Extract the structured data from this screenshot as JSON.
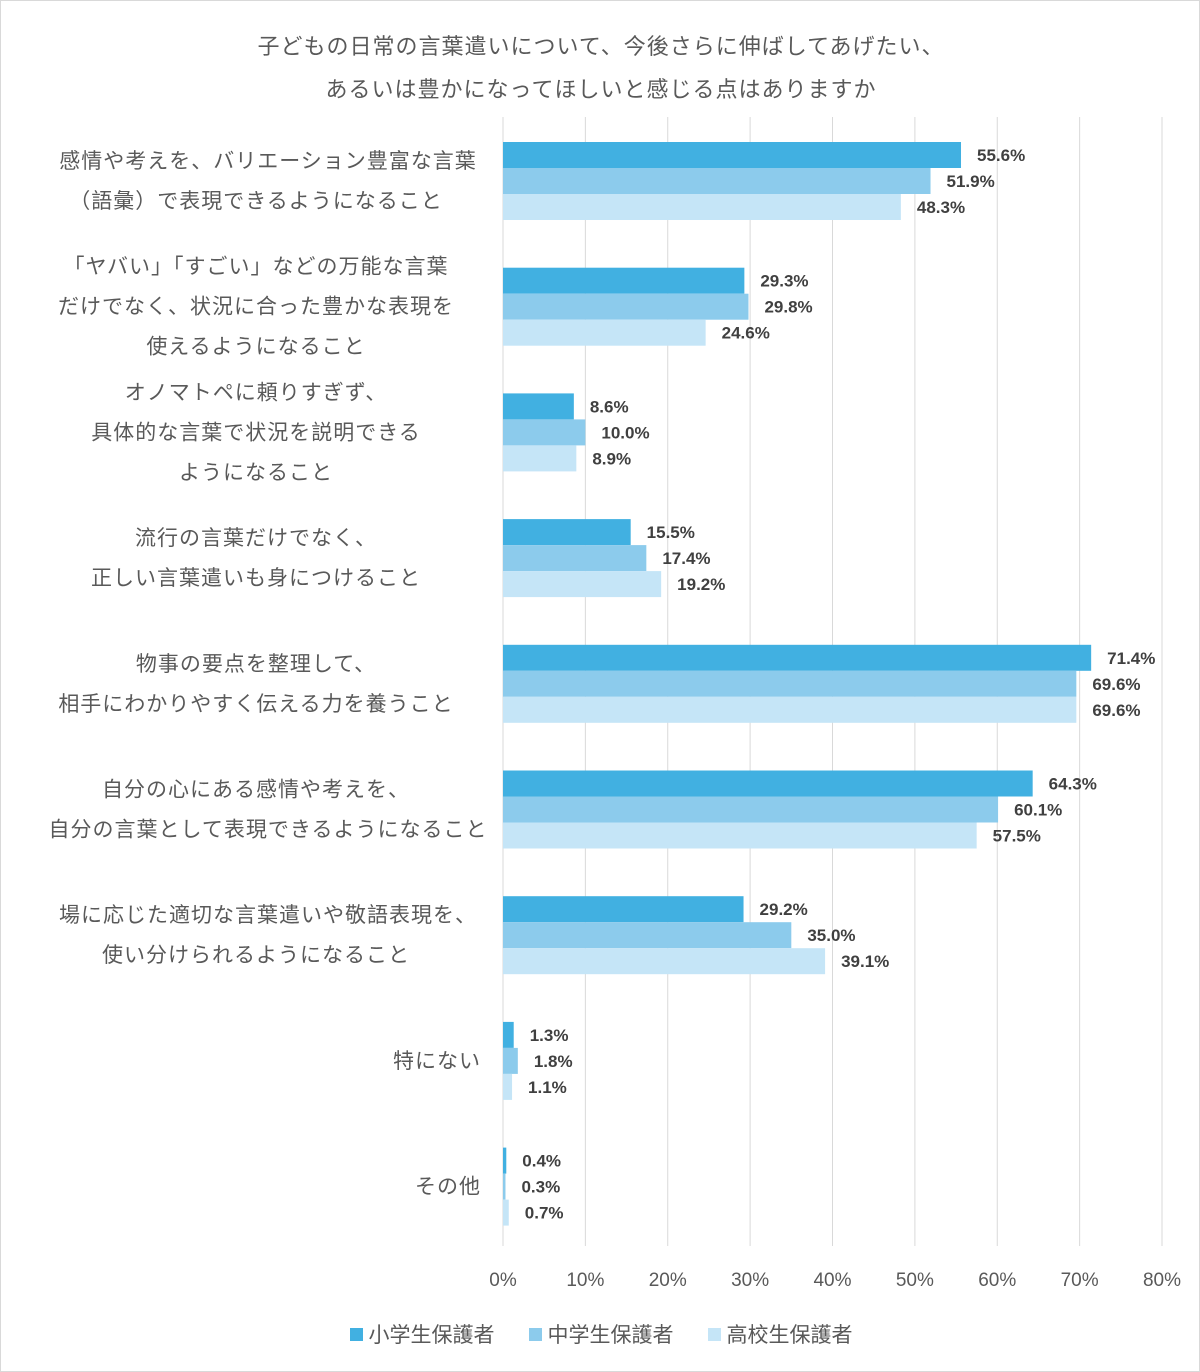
{
  "chart_data": {
    "type": "bar",
    "orientation": "horizontal",
    "title": [
      "子どもの日常の言葉遣いについて、今後さらに伸ばしてあげたい、",
      "あるいは豊かになってほしいと感じる点はありますか"
    ],
    "categories": [
      [
        "感情や考えを、バリエーション豊富な言葉",
        "（語彙）で表現できるようになること"
      ],
      [
        "「ヤバい」「すごい」などの万能な言葉",
        "だけでなく、状況に合った豊かな表現を",
        "使えるようになること"
      ],
      [
        "オノマトペに頼りすぎず、",
        "具体的な言葉で状況を説明できる",
        "ようになること"
      ],
      [
        "流行の言葉だけでなく、",
        "正しい言葉遣いも身につけること"
      ],
      [
        "物事の要点を整理して、",
        "相手にわかりやすく伝える力を養うこと"
      ],
      [
        "自分の心にある感情や考えを、",
        "自分の言葉として表現できるようになること"
      ],
      [
        "場に応じた適切な言葉遣いや敬語表現を、",
        "使い分けられるようになること"
      ],
      [
        "特にない"
      ],
      [
        "その他"
      ]
    ],
    "series": [
      {
        "name": "小学生保護者",
        "color": "#41b0e1",
        "values": [
          55.6,
          29.3,
          8.6,
          15.5,
          71.4,
          64.3,
          29.2,
          1.3,
          0.4
        ]
      },
      {
        "name": "中学生保護者",
        "color": "#8ccbec",
        "values": [
          51.9,
          29.8,
          10.0,
          17.4,
          69.6,
          60.1,
          35.0,
          1.8,
          0.3
        ]
      },
      {
        "name": "高校生保護者",
        "color": "#c5e5f7",
        "values": [
          48.3,
          24.6,
          8.9,
          19.2,
          69.6,
          57.5,
          39.1,
          1.1,
          0.7
        ]
      }
    ],
    "xlim": [
      0,
      80
    ],
    "xticks": [
      "0%",
      "10%",
      "20%",
      "30%",
      "40%",
      "50%",
      "60%",
      "70%",
      "80%"
    ],
    "grid": true,
    "legend_position": "bottom",
    "value_suffix": "%"
  }
}
